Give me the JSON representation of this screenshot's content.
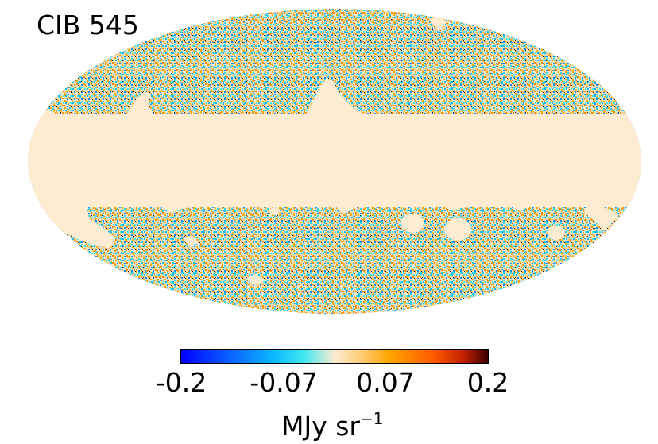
{
  "map": {
    "title": "CIB 545",
    "projection": "mollweide",
    "mask_color": "#fdebd2"
  },
  "colorbar": {
    "ticks": [
      "-0.2",
      "-0.07",
      "0.07",
      "0.2"
    ],
    "unit_main": "MJy sr",
    "unit_exp": "−1",
    "range": [
      -0.2,
      0.2
    ],
    "colors": [
      "#0000ff",
      "#0ab8ff",
      "#fdebd2",
      "#ffa500",
      "#3a0000"
    ]
  }
}
